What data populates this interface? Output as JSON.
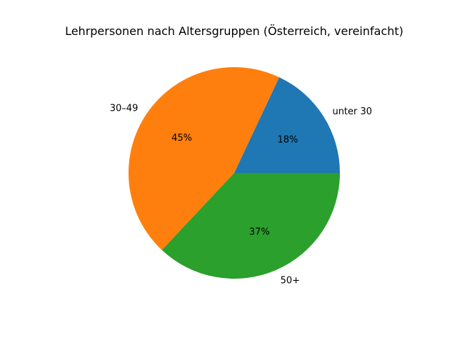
{
  "chart_data": {
    "type": "pie",
    "title": "Lehrpersonen nach Altersgruppen (Österreich, vereinfacht)",
    "categories": [
      "unter 30",
      "30–49",
      "50+"
    ],
    "values": [
      18,
      45,
      37
    ],
    "pct_labels": [
      "18%",
      "45%",
      "37%"
    ],
    "colors": [
      "#1f77b4",
      "#ff7f0e",
      "#2ca02c"
    ],
    "start_angle_deg": 0,
    "direction": "counterclockwise"
  }
}
